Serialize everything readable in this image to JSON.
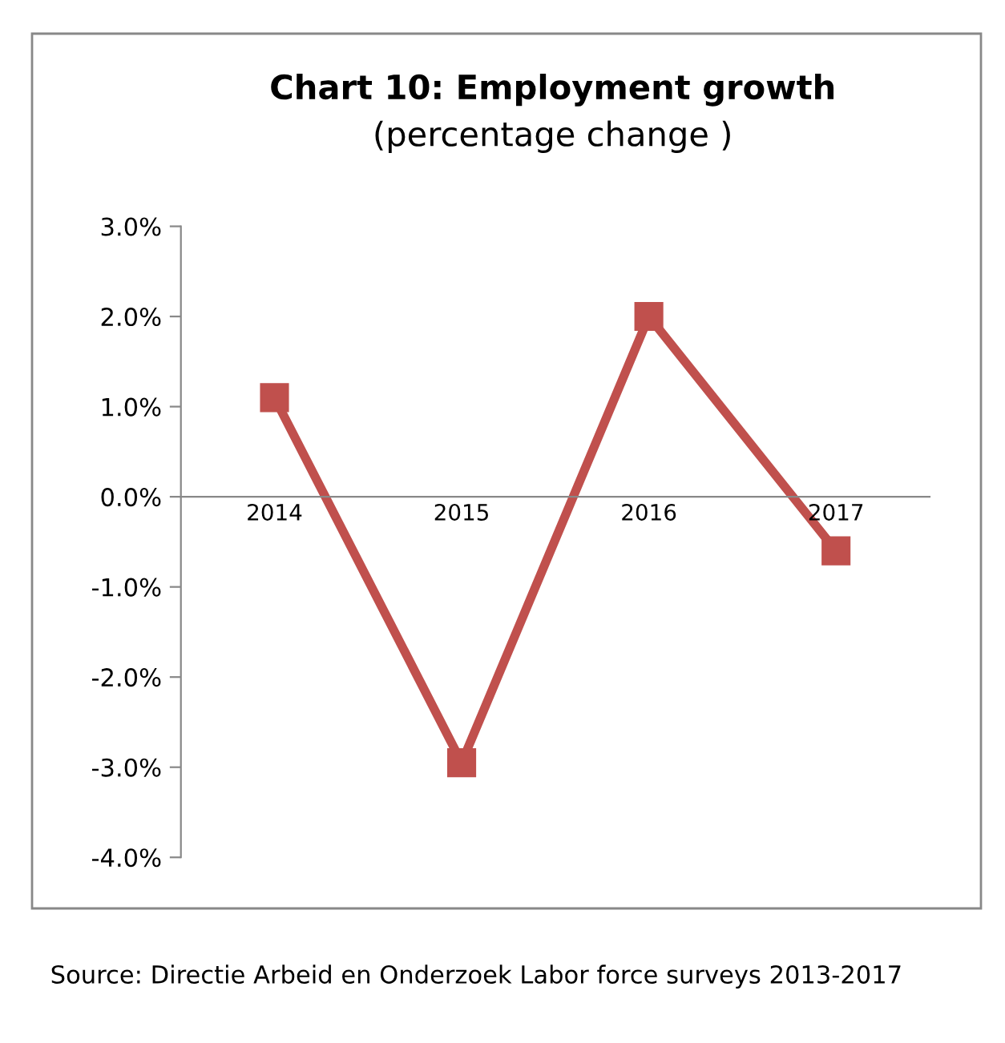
{
  "chart_data": {
    "type": "line",
    "title": "Chart 10: Employment growth",
    "subtitle": "(percentage change )",
    "categories": [
      "2014",
      "2015",
      "2016",
      "2017"
    ],
    "series": [
      {
        "color": "#c0504d",
        "values": [
          1.1,
          -2.95,
          2.0,
          -0.6
        ]
      }
    ],
    "ylim": [
      -4,
      3
    ],
    "yticks": [
      {
        "value": 3,
        "label": "3.0%"
      },
      {
        "value": 2,
        "label": "2.0%"
      },
      {
        "value": 1,
        "label": "1.0%"
      },
      {
        "value": 0,
        "label": "0.0%"
      },
      {
        "value": -1,
        "label": "-1.0%"
      },
      {
        "value": -2,
        "label": "-2.0%"
      },
      {
        "value": -3,
        "label": "-3.0%"
      },
      {
        "value": -4,
        "label": "-4.0%"
      }
    ],
    "grid": false,
    "legend": false,
    "marker": "square",
    "line_style": "solid",
    "annotations": [
      "Source: Directie Arbeid en Onderzoek Labor force surveys 2013-2017"
    ]
  }
}
